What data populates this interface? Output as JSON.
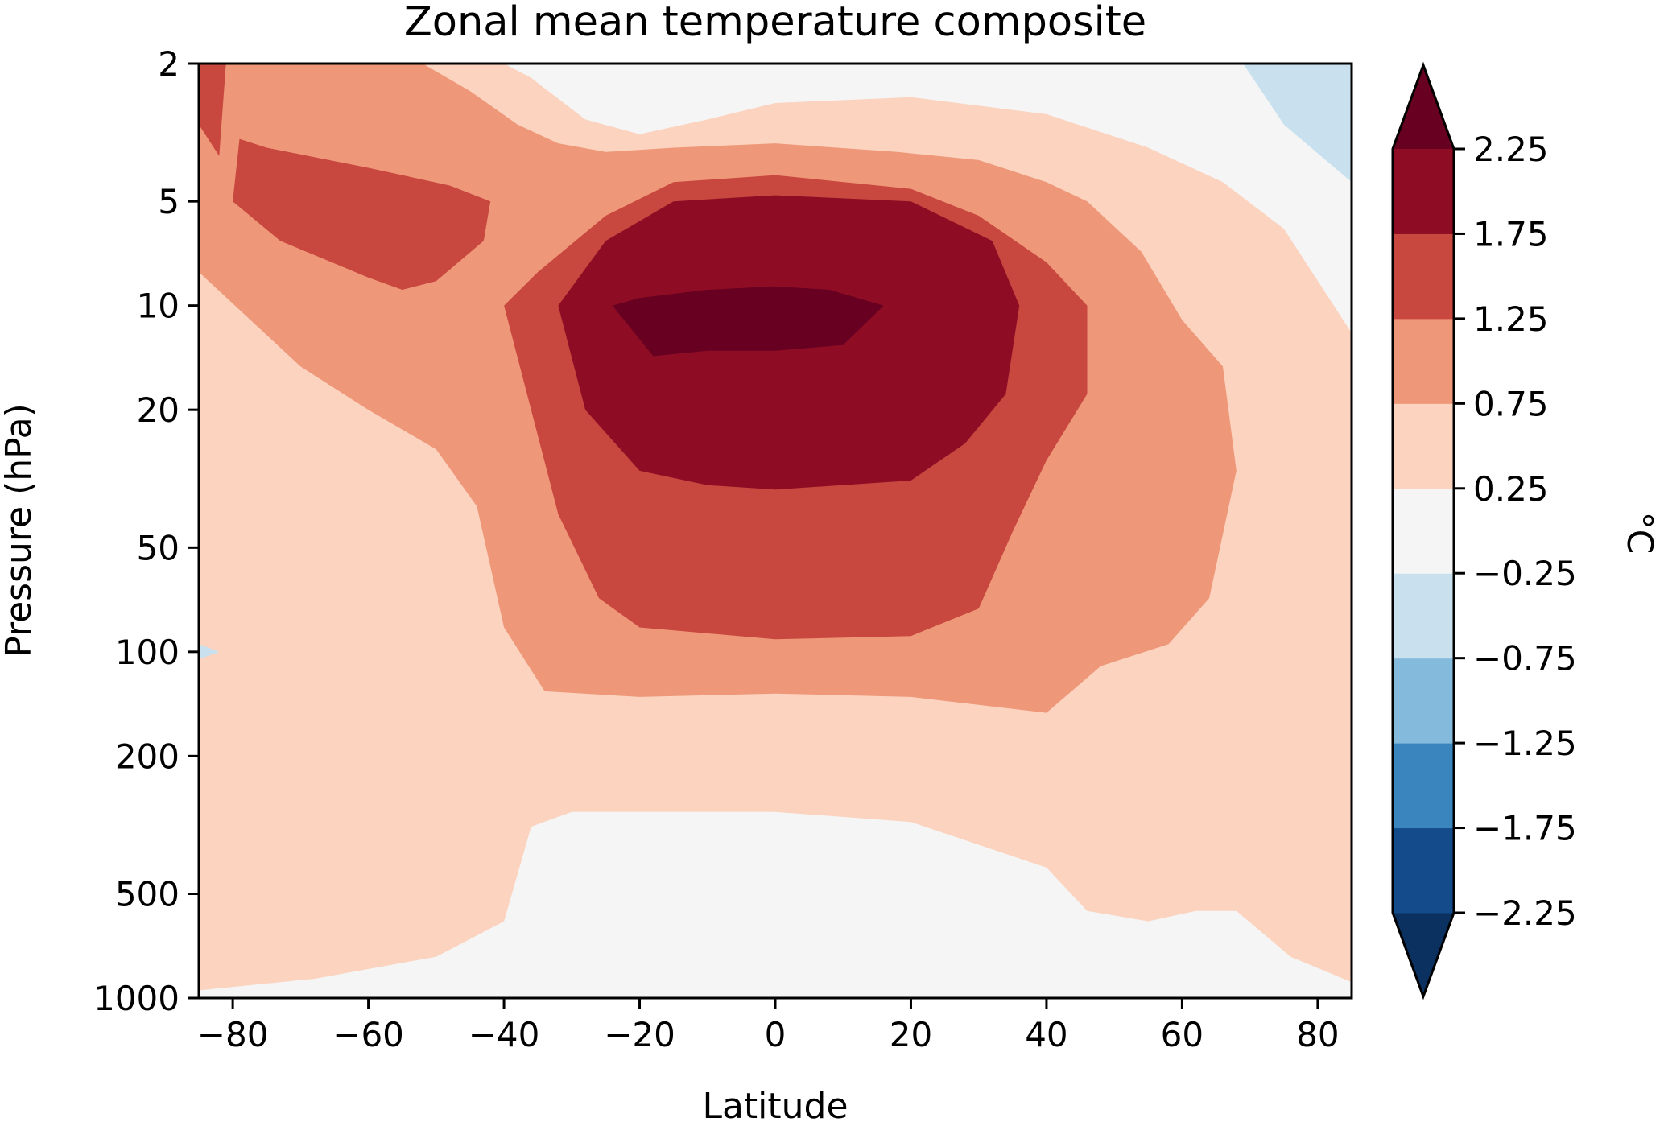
{
  "chart_data": {
    "type": "heatmap",
    "title": "Zonal mean temperature composite",
    "xlabel": "Latitude",
    "ylabel": "Pressure (hPa)",
    "xlim": [
      -85,
      85
    ],
    "ylim": [
      1000,
      2
    ],
    "yscale": "log",
    "x_ticks": [
      -80,
      -60,
      -40,
      -20,
      0,
      20,
      40,
      60,
      80
    ],
    "x_tick_labels": [
      "−80",
      "−60",
      "−40",
      "−20",
      "0",
      "20",
      "40",
      "60",
      "80"
    ],
    "y_ticks": [
      2,
      5,
      10,
      20,
      50,
      100,
      200,
      500,
      1000
    ],
    "y_tick_labels": [
      "2",
      "5",
      "10",
      "20",
      "50",
      "100",
      "200",
      "500",
      "1000"
    ],
    "colorbar": {
      "label": "°C",
      "levels": [
        -2.25,
        -1.75,
        -1.25,
        -0.75,
        -0.25,
        0.25,
        0.75,
        1.25,
        1.75,
        2.25
      ],
      "tick_labels": [
        "−2.25",
        "−1.75",
        "−1.25",
        "−0.75",
        "−0.25",
        "0.25",
        "0.75",
        "1.25",
        "1.75",
        "2.25"
      ],
      "extend": "both",
      "colors": [
        "#0b3161",
        "#144c8b",
        "#3a85bd",
        "#84badb",
        "#c9e1ef",
        "#f5f5f5",
        "#fbd3bf",
        "#ef9779",
        "#c8473f",
        "#8e0d25",
        "#680021"
      ]
    },
    "contours": [
      {
        "level_index": 6,
        "points": [
          [
            -85,
            2
          ],
          [
            -85,
            950
          ],
          [
            -68,
            880
          ],
          [
            -50,
            760
          ],
          [
            -40,
            600
          ],
          [
            -36,
            320
          ],
          [
            -30,
            290
          ],
          [
            0,
            290
          ],
          [
            20,
            310
          ],
          [
            40,
            420
          ],
          [
            46,
            560
          ],
          [
            55,
            600
          ],
          [
            62,
            560
          ],
          [
            68,
            560
          ],
          [
            76,
            760
          ],
          [
            85,
            900
          ],
          [
            85,
            12
          ],
          [
            75,
            6
          ],
          [
            66,
            4.4
          ],
          [
            55,
            3.5
          ],
          [
            40,
            2.8
          ],
          [
            20,
            2.5
          ],
          [
            0,
            2.6
          ],
          [
            -10,
            2.9
          ],
          [
            -20,
            3.2
          ],
          [
            -28,
            2.9
          ],
          [
            -36,
            2.2
          ],
          [
            -40,
            2
          ]
        ]
      },
      {
        "level_index": 7,
        "points": [
          [
            -85,
            2
          ],
          [
            -85,
            8
          ],
          [
            -70,
            15
          ],
          [
            -60,
            20
          ],
          [
            -50,
            26
          ],
          [
            -44,
            38
          ],
          [
            -40,
            85
          ],
          [
            -34,
            130
          ],
          [
            -20,
            135
          ],
          [
            0,
            132
          ],
          [
            20,
            135
          ],
          [
            40,
            150
          ],
          [
            48,
            110
          ],
          [
            58,
            95
          ],
          [
            64,
            70
          ],
          [
            68,
            30
          ],
          [
            66,
            15
          ],
          [
            60,
            11
          ],
          [
            54,
            7
          ],
          [
            46,
            5
          ],
          [
            40,
            4.4
          ],
          [
            30,
            3.8
          ],
          [
            18,
            3.6
          ],
          [
            0,
            3.4
          ],
          [
            -15,
            3.5
          ],
          [
            -25,
            3.6
          ],
          [
            -32,
            3.4
          ],
          [
            -38,
            3
          ],
          [
            -45,
            2.4
          ],
          [
            -52,
            2
          ]
        ]
      },
      {
        "level_index": 8,
        "points": [
          [
            -40,
            10
          ],
          [
            -36,
            20
          ],
          [
            -32,
            40
          ],
          [
            -26,
            70
          ],
          [
            -20,
            85
          ],
          [
            0,
            92
          ],
          [
            20,
            90
          ],
          [
            30,
            75
          ],
          [
            35,
            45
          ],
          [
            40,
            28
          ],
          [
            46,
            18
          ],
          [
            46,
            10
          ],
          [
            40,
            7.5
          ],
          [
            30,
            5.5
          ],
          [
            20,
            4.6
          ],
          [
            0,
            4.2
          ],
          [
            -15,
            4.4
          ],
          [
            -25,
            5.5
          ],
          [
            -35,
            8
          ]
        ]
      },
      {
        "level_index": 8,
        "points": [
          [
            -85,
            2
          ],
          [
            -85,
            3
          ],
          [
            -82,
            3.7
          ],
          [
            -81,
            2
          ]
        ]
      },
      {
        "level_index": 8,
        "points": [
          [
            -79,
            3.3
          ],
          [
            -80,
            5
          ],
          [
            -73,
            6.5
          ],
          [
            -60,
            8.3
          ],
          [
            -55,
            9
          ],
          [
            -50,
            8.5
          ],
          [
            -43,
            6.5
          ],
          [
            -42,
            5
          ],
          [
            -48,
            4.5
          ],
          [
            -60,
            4
          ],
          [
            -75,
            3.5
          ]
        ]
      },
      {
        "level_index": 9,
        "points": [
          [
            -32,
            10
          ],
          [
            -28,
            20
          ],
          [
            -20,
            30
          ],
          [
            -10,
            33
          ],
          [
            0,
            34
          ],
          [
            20,
            32
          ],
          [
            28,
            25
          ],
          [
            34,
            18
          ],
          [
            36,
            10
          ],
          [
            32,
            6.5
          ],
          [
            20,
            5
          ],
          [
            0,
            4.8
          ],
          [
            -15,
            5
          ],
          [
            -25,
            6.5
          ]
        ]
      },
      {
        "level_index": 10,
        "points": [
          [
            -24,
            10
          ],
          [
            -18,
            14
          ],
          [
            -10,
            13.5
          ],
          [
            0,
            13.5
          ],
          [
            10,
            13
          ],
          [
            16,
            10
          ],
          [
            8,
            9
          ],
          [
            0,
            8.8
          ],
          [
            -10,
            9
          ],
          [
            -20,
            9.5
          ]
        ]
      },
      {
        "level_index": 4,
        "points": [
          [
            69,
            2
          ],
          [
            75,
            3
          ],
          [
            85,
            4.4
          ],
          [
            85,
            2
          ]
        ]
      },
      {
        "level_index": 4,
        "points": [
          [
            -85,
            95
          ],
          [
            -82,
            100
          ],
          [
            -85,
            105
          ]
        ]
      }
    ]
  }
}
